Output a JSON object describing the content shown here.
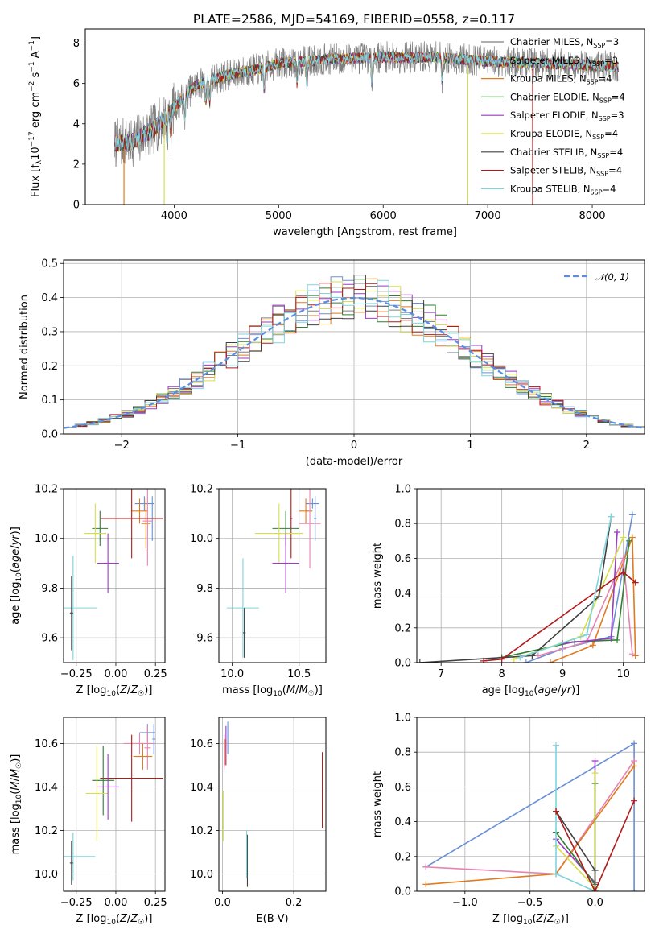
{
  "title": "PLATE=2586, MJD=54169, FIBERID=0558, z=0.117",
  "colors": {
    "Chabrier MILES": "#7f7f7f",
    "Salpeter MILES": "#6a8fd6",
    "Kroupa MILES": "#e07b20",
    "Chabrier ELODIE": "#2f7f2f",
    "Salpeter ELODIE": "#9b3ac2",
    "Kroupa ELODIE": "#d6df4a",
    "Chabrier STELIB": "#404040",
    "Salpeter STELIB": "#b11b1b",
    "Kroupa STELIB": "#7fd3dd",
    "pink": "#e884b0"
  },
  "chart_data": [
    {
      "id": "spectrum",
      "type": "line",
      "xlabel": "wavelength [Angstrom, rest frame]",
      "ylabel": "Flux [f_λ10^-17 erg cm^-2 s^-1 A^-1]",
      "xlim": [
        3150,
        8500
      ],
      "ylim": [
        0,
        8.7
      ],
      "xticks": [
        4000,
        5000,
        6000,
        7000,
        8000
      ],
      "yticks": [
        0,
        2,
        4,
        6,
        8
      ],
      "grid": false,
      "legend_position": "top-right",
      "legend": [
        {
          "label": "Chabrier MILES",
          "nssp": "3"
        },
        {
          "label": "Salpeter MILES",
          "nssp": "3"
        },
        {
          "label": "Kroupa MILES",
          "nssp": "4"
        },
        {
          "label": "Chabrier ELODIE",
          "nssp": "4"
        },
        {
          "label": "Salpeter ELODIE",
          "nssp": "3"
        },
        {
          "label": "Kroupa ELODIE",
          "nssp": "4"
        },
        {
          "label": "Chabrier STELIB",
          "nssp": "4"
        },
        {
          "label": "Salpeter STELIB",
          "nssp": "4"
        },
        {
          "label": "Kroupa STELIB",
          "nssp": "4"
        }
      ],
      "continuum": {
        "x": [
          3400,
          3600,
          3800,
          4000,
          4200,
          4500,
          4800,
          5000,
          5500,
          6000,
          6500,
          7000,
          7500,
          8000,
          8250
        ],
        "y": [
          3.0,
          3.1,
          3.7,
          4.8,
          5.9,
          6.4,
          6.7,
          7.0,
          7.2,
          7.3,
          7.3,
          7.1,
          7.0,
          6.9,
          6.8
        ]
      }
    },
    {
      "id": "residuals",
      "type": "line",
      "xlabel": "(data-model)/error",
      "ylabel": "Normed distribution",
      "xlim": [
        -2.5,
        2.5
      ],
      "ylim": [
        0,
        0.51
      ],
      "xticks": [
        -2,
        -1,
        0,
        1,
        2
      ],
      "yticks": [
        0.0,
        0.1,
        0.2,
        0.3,
        0.4,
        0.5
      ],
      "grid": true,
      "legend_position": "top-right",
      "legend": [
        "𝒩(0, 1)"
      ]
    },
    {
      "id": "age-vs-Z",
      "type": "scatter",
      "xlabel": "Z [log10(Z/Z☉)]",
      "ylabel": "age  [log10(age/yr)]",
      "xlim": [
        -0.33,
        0.31
      ],
      "ylim": [
        9.5,
        10.2
      ],
      "xticks": [
        -0.25,
        0.0,
        0.25
      ],
      "yticks": [
        9.6,
        9.8,
        10.0,
        10.2
      ]
    },
    {
      "id": "age-vs-mass",
      "type": "scatter",
      "xlabel": "mass [log10(M/M☉)]",
      "ylabel": "",
      "xlim": [
        9.9,
        10.7
      ],
      "ylim": [
        9.5,
        10.2
      ],
      "xticks": [
        10.0,
        10.5
      ],
      "yticks": [
        9.6,
        9.8,
        10.0,
        10.2
      ]
    },
    {
      "id": "massweight-vs-age",
      "type": "line",
      "xlabel": "age  [log10(age/yr)]",
      "ylabel": "mass weight",
      "xlim": [
        6.6,
        10.35
      ],
      "ylim": [
        0,
        1
      ],
      "xticks": [
        7,
        8,
        9,
        10
      ],
      "yticks": [
        0.0,
        0.2,
        0.4,
        0.6,
        0.8,
        1.0
      ]
    },
    {
      "id": "mass-vs-Z",
      "type": "scatter",
      "xlabel": "Z [log10(Z/Z☉)]",
      "ylabel": "mass [log10(M/M☉)]",
      "xlim": [
        -0.33,
        0.31
      ],
      "ylim": [
        9.92,
        10.72
      ],
      "xticks": [
        -0.25,
        0.0,
        0.25
      ],
      "yticks": [
        10.0,
        10.2,
        10.4,
        10.6
      ]
    },
    {
      "id": "mass-vs-EBV",
      "type": "scatter",
      "xlabel": "E(B-V)",
      "ylabel": "",
      "xlim": [
        -0.01,
        0.29
      ],
      "ylim": [
        9.92,
        10.72
      ],
      "xticks": [
        0.0,
        0.2
      ],
      "yticks": [
        10.0,
        10.2,
        10.4,
        10.6
      ]
    },
    {
      "id": "massweight-vs-Z",
      "type": "line",
      "xlabel": "Z [log10(Z/Z☉)]",
      "ylabel": "mass weight",
      "xlim": [
        -1.37,
        0.38
      ],
      "ylim": [
        0,
        1
      ],
      "xticks": [
        -1.0,
        -0.5,
        0.0
      ],
      "yticks": [
        0.0,
        0.2,
        0.4,
        0.6,
        0.8,
        1.0
      ]
    }
  ]
}
